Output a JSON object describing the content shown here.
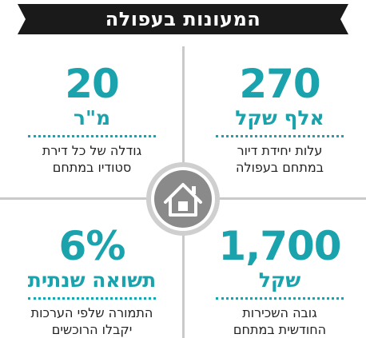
{
  "title": "המעונות בעפולה",
  "icon": "house-icon",
  "colors": {
    "accent": "#1ba3ad",
    "banner": "#1a1a1a",
    "divider": "#c9c9c9"
  },
  "stats": {
    "top_right": {
      "value": "270",
      "unit": "אלף שקל",
      "line1": "עלות יחידת דיור",
      "line2": "במתחם בעפולה"
    },
    "top_left": {
      "value": "20",
      "unit": "מ\"ר",
      "line1": "גודלה של כל דירת",
      "line2": "סטודיו במתחם"
    },
    "bottom_right": {
      "value": "1,700",
      "unit": "שקל",
      "line1": "גובה השכירות",
      "line2": "החודשית במתחם"
    },
    "bottom_left": {
      "value": "6%",
      "unit": "תשואה שנתית",
      "line1": "התמורה שלפי הערכות",
      "line2": "יקבלו הרוכשים"
    }
  }
}
